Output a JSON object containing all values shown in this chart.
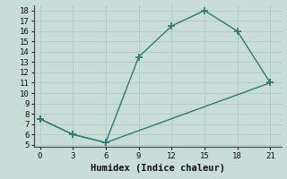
{
  "line1_x": [
    0,
    3,
    6,
    9,
    12,
    15,
    18,
    21
  ],
  "line1_y": [
    7.5,
    6.0,
    5.2,
    13.5,
    16.5,
    18.0,
    16.0,
    11.0
  ],
  "line2_x": [
    0,
    3,
    6,
    21
  ],
  "line2_y": [
    7.5,
    6.0,
    5.2,
    11.0
  ],
  "color": "#2e7d6e",
  "bg_color": "#c8ddd8",
  "grid_color": "#b0cdc8",
  "xlabel": "Humidex (Indice chaleur)",
  "xlim": [
    -0.5,
    22
  ],
  "ylim": [
    4.8,
    18.5
  ],
  "xticks": [
    0,
    3,
    6,
    9,
    12,
    15,
    18,
    21
  ],
  "yticks": [
    5,
    6,
    7,
    8,
    9,
    10,
    11,
    12,
    13,
    14,
    15,
    16,
    17,
    18
  ],
  "marker": "+",
  "marker_size": 6,
  "linewidth": 1.0,
  "tick_fontsize": 6.5,
  "xlabel_fontsize": 7.5
}
